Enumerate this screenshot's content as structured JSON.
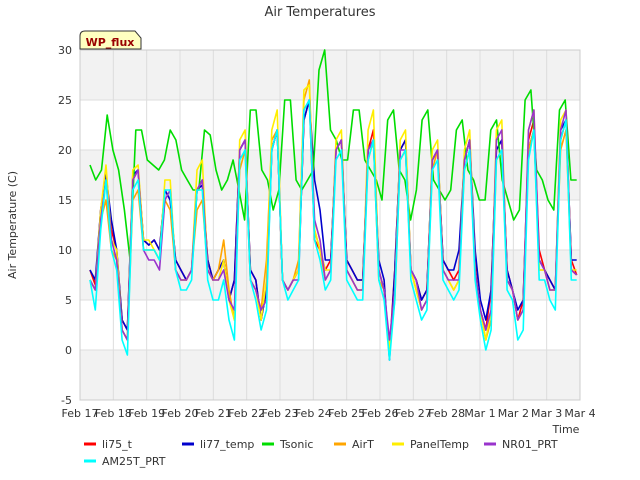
{
  "chart_data": {
    "type": "line",
    "title": "Air Temperatures",
    "xlabel": "Time",
    "ylabel": "Air Temperature (C)",
    "badge": "WP_flux",
    "xlim": [
      0,
      15
    ],
    "ylim": [
      -5,
      30
    ],
    "grid": true,
    "yticks": [
      -5,
      0,
      5,
      10,
      15,
      20,
      25,
      30
    ],
    "xticks": [
      {
        "x": 0,
        "label": "Feb 17"
      },
      {
        "x": 1,
        "label": "Feb 18"
      },
      {
        "x": 2,
        "label": "Feb 19"
      },
      {
        "x": 3,
        "label": "Feb 20"
      },
      {
        "x": 4,
        "label": "Feb 21"
      },
      {
        "x": 5,
        "label": "Feb 22"
      },
      {
        "x": 6,
        "label": "Feb 23"
      },
      {
        "x": 7,
        "label": "Feb 24"
      },
      {
        "x": 8,
        "label": "Feb 25"
      },
      {
        "x": 9,
        "label": "Feb 26"
      },
      {
        "x": 10,
        "label": "Feb 27"
      },
      {
        "x": 11,
        "label": "Feb 28"
      },
      {
        "x": 12,
        "label": "Mar 1"
      },
      {
        "x": 13,
        "label": "Mar 2"
      },
      {
        "x": 14,
        "label": "Mar 3"
      },
      {
        "x": 15,
        "label": "Mar 4"
      }
    ],
    "legend_position": "bottom",
    "x_start": 0.3,
    "x_end": 14.9,
    "series": [
      {
        "name": "li75_t",
        "color": "#ff0000",
        "values": [
          8,
          6.5,
          14,
          17.5,
          12,
          10,
          3,
          2,
          17,
          18,
          11,
          10.5,
          11,
          10,
          16,
          15,
          9,
          8,
          7,
          8,
          16,
          17,
          9,
          7,
          8,
          9,
          5,
          7,
          20,
          21,
          8,
          7,
          3,
          6,
          20,
          22,
          7,
          6,
          7,
          8,
          23,
          25,
          11,
          10,
          8,
          9,
          20,
          21,
          9,
          8,
          7,
          7,
          20,
          22,
          8,
          6,
          0,
          8,
          20,
          21,
          8,
          7,
          5,
          6,
          19,
          20,
          9,
          8,
          7,
          8,
          19,
          21,
          9,
          4,
          2,
          6,
          20,
          21,
          8,
          6,
          3,
          5,
          21,
          23,
          10,
          8,
          7,
          6,
          21,
          23,
          9,
          7.5
        ]
      },
      {
        "name": "li77_temp",
        "color": "#0000cc",
        "values": [
          8,
          7,
          14,
          17.5,
          13,
          10,
          3,
          2,
          17.5,
          18,
          11,
          10.5,
          11,
          10,
          16,
          15,
          9,
          8,
          7,
          8,
          16,
          16.5,
          9,
          7,
          8,
          9,
          5,
          7,
          20,
          21,
          8,
          7,
          3,
          6,
          20,
          22,
          7,
          6,
          7,
          8,
          23,
          25,
          17,
          14,
          9,
          9,
          20,
          21,
          9,
          8,
          7,
          7,
          20,
          21,
          9,
          7,
          -1,
          8,
          20,
          21,
          8,
          7,
          5,
          6,
          19,
          20,
          9,
          8,
          8,
          10,
          19,
          21,
          10,
          5,
          3,
          6,
          20,
          21,
          8,
          6,
          4,
          5,
          20,
          22,
          9,
          8,
          7,
          6,
          22,
          23,
          9,
          9
        ]
      },
      {
        "name": "Tsonic",
        "color": "#00dd00",
        "values": [
          18.5,
          17,
          18,
          23.5,
          20,
          18,
          14,
          9,
          22,
          22,
          19,
          18.5,
          18,
          19,
          22,
          21,
          18,
          17,
          16,
          16,
          22,
          21.5,
          18,
          16,
          17,
          19,
          16,
          13,
          24,
          24,
          18,
          17,
          14,
          16,
          25,
          25,
          17,
          16,
          17,
          18,
          28,
          30,
          22,
          21,
          19,
          19,
          24,
          24,
          19,
          18,
          17,
          15,
          23,
          24,
          18,
          17,
          13,
          16,
          23,
          24,
          17,
          16,
          15,
          16,
          22,
          23,
          18,
          17,
          15,
          15,
          22,
          23,
          17,
          15,
          13,
          14,
          25,
          26,
          18,
          17,
          15,
          14,
          24,
          25,
          17,
          17
        ]
      },
      {
        "name": "AirT",
        "color": "#ffa500",
        "values": [
          7,
          6,
          13,
          15,
          10,
          9,
          2,
          1,
          15,
          16,
          10,
          10,
          10,
          9,
          15,
          14,
          8,
          7,
          7,
          8,
          14,
          15,
          8,
          7,
          8,
          11,
          6,
          3,
          18,
          20,
          7,
          6,
          4,
          9,
          21,
          22,
          7,
          6,
          7,
          9,
          25,
          27,
          12,
          10,
          7,
          8,
          20,
          21,
          8,
          7,
          6,
          6,
          19,
          21,
          7,
          6,
          0,
          5,
          19,
          20,
          8,
          6,
          4,
          5,
          18,
          20,
          8,
          7,
          6,
          7,
          18,
          20,
          8,
          4,
          1,
          3,
          19,
          20,
          7,
          6,
          3,
          4,
          20,
          22,
          8,
          8,
          6,
          6,
          20,
          22,
          8,
          7.5
        ]
      },
      {
        "name": "PanelTemp",
        "color": "#ffee00",
        "values": [
          7,
          6,
          14,
          18.5,
          11,
          10,
          2,
          1,
          18,
          18.5,
          11,
          11,
          10,
          9,
          17,
          17,
          8,
          7,
          7,
          8,
          18,
          19,
          8,
          7,
          7,
          9,
          5,
          3,
          21,
          22,
          7,
          6,
          3,
          7,
          22,
          24,
          7,
          6,
          7,
          8,
          26,
          26.5,
          12,
          10,
          8,
          8,
          21,
          22,
          8,
          7,
          6,
          6,
          22,
          24,
          8,
          6,
          0,
          6,
          21,
          22,
          8,
          6,
          4,
          5,
          20,
          21,
          8,
          7,
          6,
          7,
          20,
          22,
          8,
          4,
          1,
          4,
          22,
          23,
          7,
          6,
          3,
          4,
          22,
          24,
          8,
          8,
          6,
          6,
          23,
          24,
          8,
          8
        ]
      },
      {
        "name": "NR01_PRT",
        "color": "#9933cc",
        "values": [
          7,
          6,
          13,
          17,
          11,
          9,
          2,
          1,
          17,
          18,
          10,
          9,
          9,
          8,
          15,
          16,
          8,
          7,
          7,
          8,
          16,
          17,
          8,
          7,
          7,
          8,
          5,
          4,
          20,
          21,
          7,
          6,
          4,
          5,
          20,
          22,
          7,
          6,
          7,
          7,
          24,
          25,
          13,
          11,
          7,
          8,
          20,
          21,
          8,
          7,
          6,
          6,
          20,
          21,
          8,
          6,
          1,
          6,
          20,
          20,
          8,
          7,
          4,
          5,
          19,
          20,
          8,
          7,
          7,
          7,
          19,
          21,
          8,
          4,
          2,
          4,
          21,
          22,
          7,
          6,
          3,
          4,
          22,
          24,
          9,
          8,
          6,
          6,
          22,
          24,
          8,
          7.5
        ]
      },
      {
        "name": "AM25T_PRT",
        "color": "#00ffff",
        "values": [
          7,
          4,
          12,
          17,
          10,
          8,
          1,
          -0.5,
          16,
          17,
          10,
          10,
          10,
          9,
          16,
          16,
          8,
          6,
          6,
          7,
          16,
          16,
          7,
          5,
          5,
          7,
          3,
          1,
          19,
          20,
          7,
          5,
          2,
          4,
          20,
          22,
          7,
          5,
          6,
          7,
          24,
          25,
          11,
          9,
          6,
          7,
          19,
          20,
          7,
          6,
          5,
          5,
          19,
          21,
          7,
          5,
          -1,
          5,
          19,
          20,
          7,
          5,
          3,
          4,
          18,
          19,
          7,
          6,
          5,
          6,
          18,
          20,
          7,
          3,
          0,
          2,
          19,
          20,
          6,
          5,
          1,
          2,
          19,
          22,
          7,
          7,
          5,
          4,
          21,
          23,
          7,
          7
        ]
      }
    ]
  }
}
